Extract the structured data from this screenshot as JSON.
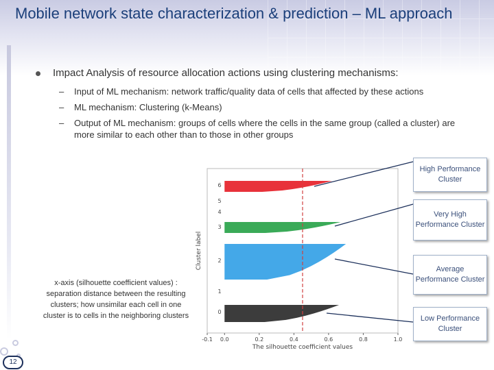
{
  "slide": {
    "title": "Mobile network state characterization & prediction – ML approach",
    "page_number": "12"
  },
  "bullets": {
    "main": "Impact Analysis of resource allocation actions using clustering mechanisms:",
    "subs": [
      {
        "dash": "–",
        "text": "Input of ML mechanism: network traffic/quality data of cells that affected by these actions"
      },
      {
        "dash": "–",
        "text": "ML mechanism: Clustering (k-Means)"
      },
      {
        "dash": "–",
        "text": "Output of ML mechanism:  groups of cells where the cells in the same group (called a cluster) are more similar to each other than to those in other groups"
      }
    ]
  },
  "caption": "x-axis (silhouette coefficient values) : separation distance between the resulting clusters; how unsimilar each cell in one cluster is to cells in the neighboring clusters",
  "callouts": [
    {
      "label": "High Performance Cluster"
    },
    {
      "label": "Very High Performance Cluster"
    },
    {
      "label": "Average Performance Cluster"
    },
    {
      "label": "Low Performance Cluster"
    }
  ],
  "chart_data": {
    "type": "bar",
    "xlabel": "The silhouette coefficient values",
    "ylabel": "Cluster label",
    "xlim": [
      -0.1,
      1.0
    ],
    "xticks": [
      "-0.1",
      "0.0",
      "0.2",
      "0.4",
      "0.6",
      "0.8",
      "1.0"
    ],
    "xtick_values": [
      -0.1,
      0.0,
      0.2,
      0.4,
      0.6,
      0.8,
      1.0
    ],
    "average_silhouette": 0.45,
    "clusters": [
      {
        "label": "6",
        "max_silhouette": 0.62,
        "color": "#e8323a",
        "description": "High Performance Cluster"
      },
      {
        "label": "5",
        "max_silhouette": 0.0,
        "color": "#9a9a9a"
      },
      {
        "label": "4",
        "max_silhouette": 0.0,
        "color": "#9a9a9a"
      },
      {
        "label": "3",
        "max_silhouette": 0.67,
        "color": "#3aaa58",
        "description": "Very High Performance Cluster"
      },
      {
        "label": "2",
        "max_silhouette": 0.7,
        "color": "#44a8e8",
        "description": "Average Performance Cluster"
      },
      {
        "label": "1",
        "max_silhouette": 0.0,
        "color": "#9a9a9a"
      },
      {
        "label": "0",
        "max_silhouette": 0.66,
        "color": "#3c3c3c",
        "description": "Low Performance Cluster"
      }
    ]
  }
}
